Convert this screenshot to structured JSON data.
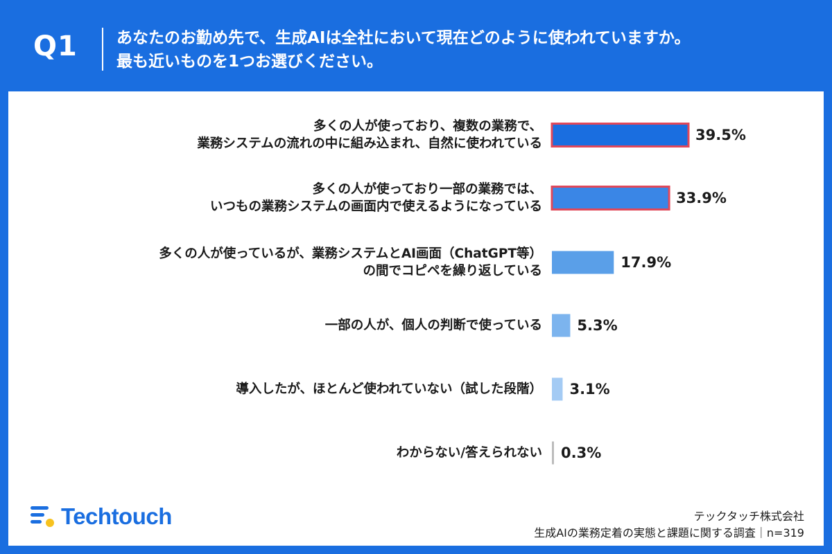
{
  "header": {
    "question_label": "Q1",
    "question_line1": "あなたのお勤め先で、生成AIは全社において現在どのように使われていますか。",
    "question_line2": "最も近いものを1つお選びください。"
  },
  "chart_data": {
    "type": "bar",
    "orientation": "horizontal",
    "categories": [
      [
        "多くの人が使っており、複数の業務で、",
        "業務システムの流れの中に組み込まれ、自然に使われている"
      ],
      [
        "多くの人が使っており一部の業務では、",
        "いつもの業務システムの画面内で使えるようになっている"
      ],
      [
        "多くの人が使っているが、業務システムとAI画面（ChatGPT等）",
        "の間でコピペを繰り返している"
      ],
      [
        "一部の人が、個人の判断で使っている"
      ],
      [
        "導入したが、ほとんど使われていない（試した段階）"
      ],
      [
        "わからない/答えられない"
      ]
    ],
    "values": [
      39.5,
      33.9,
      17.9,
      5.3,
      3.1,
      0.3
    ],
    "value_labels": [
      "39.5%",
      "33.9%",
      "17.9%",
      "5.3%",
      "3.1%",
      "0.3%"
    ],
    "bar_colors": [
      "#1a6ee0",
      "#3a86e6",
      "#5a9fe8",
      "#7cb4ee",
      "#a4cbf4",
      "#bcbcbc"
    ],
    "highlight_border_color": "#e0485a",
    "highlighted": [
      true,
      true,
      false,
      false,
      false,
      false
    ],
    "xlim": [
      0,
      40
    ],
    "grid": false,
    "legend": "none"
  },
  "footer": {
    "brand_name": "Techtouch",
    "company": "テックタッチ株式会社",
    "survey": "生成AIの業務定着の実態と課題に関する調査｜n=319"
  },
  "colors": {
    "background": "#1a6ee0",
    "card": "#ffffff",
    "accent_yellow": "#f7c21f"
  }
}
